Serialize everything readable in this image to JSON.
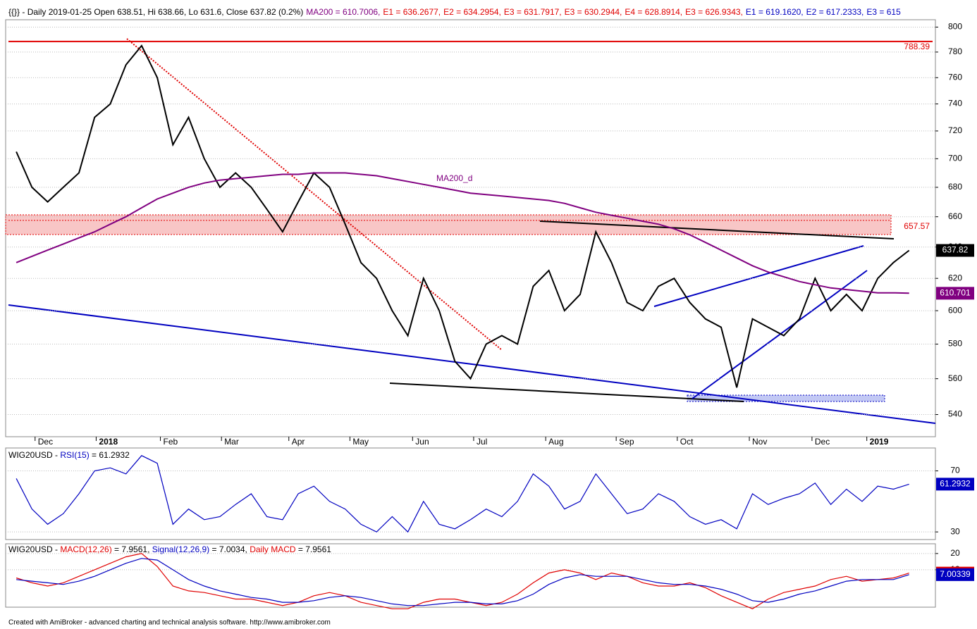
{
  "chart_data": [
    {
      "type": "line",
      "header": [
        {
          "text": "{{}} - Daily 2019-01-25 Open 638.51, Hi 638.66, Lo 631.6, Close 637.82 (0.2%)",
          "color": "#000000"
        },
        {
          "text": "MA200 = 610.7006,",
          "color": "#800080"
        },
        {
          "text": "E1 = 636.2677,",
          "color": "#e00000"
        },
        {
          "text": "E2 = 634.2954,",
          "color": "#e00000"
        },
        {
          "text": "E3 = 631.7917,",
          "color": "#e00000"
        },
        {
          "text": "E3 = 630.2944,",
          "color": "#e00000"
        },
        {
          "text": "E4 = 628.8914,",
          "color": "#e00000"
        },
        {
          "text": "E3 = 626.9343,",
          "color": "#e00000"
        },
        {
          "text": "E1 = 619.1620,",
          "color": "#0000c0"
        },
        {
          "text": "E2 = 617.2333,",
          "color": "#0000c0"
        },
        {
          "text": "E3 = 615",
          "color": "#0000c0"
        }
      ],
      "log_scale": true,
      "ylim": [
        528,
        806
      ],
      "yticks": [
        540,
        560,
        580,
        600,
        620,
        640,
        660,
        680,
        700,
        720,
        740,
        760,
        780,
        800
      ],
      "xlim": [
        -0.5,
        58.5
      ],
      "xticks": [
        {
          "value": 1.2,
          "label": "Dec"
        },
        {
          "value": 5.1,
          "label": "2018"
        },
        {
          "value": 9.2,
          "label": "Feb"
        },
        {
          "value": 13.1,
          "label": "Mar"
        },
        {
          "value": 17.4,
          "label": "Apr"
        },
        {
          "value": 21.3,
          "label": "May"
        },
        {
          "value": 25.3,
          "label": "Jun"
        },
        {
          "value": 29.2,
          "label": "Jul"
        },
        {
          "value": 33.8,
          "label": "Aug"
        },
        {
          "value": 38.3,
          "label": "Sep"
        },
        {
          "value": 42.2,
          "label": "Oct"
        },
        {
          "value": 46.8,
          "label": "Nov"
        },
        {
          "value": 50.8,
          "label": "Dec"
        },
        {
          "value": 54.3,
          "label": "2019"
        }
      ],
      "series": [
        {
          "name": "Close",
          "color": "#000000",
          "values": [
            705,
            680,
            670,
            680,
            690,
            730,
            740,
            770,
            785,
            760,
            710,
            730,
            700,
            680,
            690,
            680,
            665,
            650,
            670,
            690,
            680,
            655,
            630,
            620,
            600,
            585,
            620,
            600,
            570,
            560,
            580,
            585,
            580,
            615,
            625,
            600,
            610,
            650,
            630,
            605,
            600,
            615,
            620,
            605,
            595,
            590,
            555,
            595,
            590,
            585,
            595,
            620,
            600,
            610,
            600,
            620,
            630,
            637.82
          ]
        },
        {
          "name": "MA200_d",
          "color": "#800080",
          "values": [
            630,
            634,
            638,
            642,
            646,
            650,
            655,
            660,
            666,
            672,
            676,
            680,
            683,
            685,
            686,
            687,
            688,
            689,
            689,
            690,
            690,
            690,
            689,
            688,
            686,
            684,
            682,
            680,
            678,
            676,
            675,
            674,
            673,
            672,
            671,
            669,
            666,
            663,
            661,
            659,
            657,
            655,
            652,
            648,
            643,
            638,
            633,
            628,
            624,
            621,
            618,
            616,
            614,
            613,
            612,
            611,
            611,
            610.7
          ]
        }
      ],
      "levels": [
        {
          "value": 788.39,
          "color": "#e00000"
        },
        {
          "value": 657.57,
          "color": "#e00000"
        }
      ],
      "badges": [
        {
          "text": "637.82",
          "color": "#000000",
          "value": 637.82
        },
        {
          "text": "610.701",
          "color": "#800080",
          "value": 610.701
        }
      ]
    },
    {
      "type": "line",
      "header": [
        {
          "text": "WIG20USD - ",
          "color": "#000000"
        },
        {
          "text": "RSI(15)",
          "color": "#0000c0"
        },
        {
          "text": " = 61.2932",
          "color": "#000000"
        }
      ],
      "ylim": [
        25,
        85
      ],
      "yticks": [
        30,
        70
      ],
      "xlim": [
        -0.5,
        58.5
      ],
      "series": [
        {
          "name": "RSI(15)",
          "color": "#0000c0",
          "values": [
            65,
            45,
            35,
            42,
            55,
            70,
            72,
            68,
            80,
            75,
            35,
            45,
            38,
            40,
            48,
            55,
            40,
            38,
            55,
            60,
            50,
            45,
            35,
            30,
            40,
            30,
            50,
            35,
            32,
            38,
            45,
            40,
            50,
            68,
            60,
            45,
            50,
            68,
            55,
            42,
            45,
            55,
            50,
            40,
            35,
            38,
            32,
            55,
            48,
            52,
            55,
            62,
            48,
            58,
            50,
            60,
            58,
            61.2932
          ]
        }
      ],
      "badges": [
        {
          "text": "61.2932",
          "color": "#0000c0",
          "value": 61.2932
        }
      ]
    },
    {
      "type": "line",
      "header": [
        {
          "text": "WIG20USD - ",
          "color": "#000000"
        },
        {
          "text": "MACD(12,26)",
          "color": "#e00000"
        },
        {
          "text": " = 7.9561, ",
          "color": "#000000"
        },
        {
          "text": "Signal(12,26,9)",
          "color": "#0000c0"
        },
        {
          "text": " = 7.0034, ",
          "color": "#000000"
        },
        {
          "text": "Daily MACD",
          "color": "#e00000"
        },
        {
          "text": " = 7.9561",
          "color": "#000000"
        }
      ],
      "ylim": [
        -13,
        26
      ],
      "yticks": [
        20,
        10
      ],
      "xlim": [
        -0.5,
        58.5
      ],
      "series": [
        {
          "name": "MACD(12,26)",
          "color": "#e00000",
          "values": [
            5,
            2,
            0,
            2,
            6,
            10,
            14,
            18,
            20,
            12,
            0,
            -3,
            -4,
            -6,
            -8,
            -8,
            -10,
            -12,
            -10,
            -6,
            -4,
            -6,
            -10,
            -12,
            -14,
            -14,
            -10,
            -8,
            -8,
            -10,
            -12,
            -10,
            -5,
            2,
            8,
            10,
            8,
            4,
            8,
            6,
            2,
            0,
            0,
            2,
            -1,
            -6,
            -10,
            -14,
            -8,
            -4,
            -2,
            0,
            4,
            6,
            3,
            4,
            5,
            7.9561
          ]
        },
        {
          "name": "Signal(12,26,9)",
          "color": "#0000c0",
          "values": [
            4,
            3,
            2,
            1,
            3,
            6,
            10,
            14,
            17,
            16,
            10,
            4,
            0,
            -3,
            -5,
            -7,
            -8,
            -10,
            -10,
            -9,
            -7,
            -6,
            -7,
            -9,
            -11,
            -12,
            -12,
            -11,
            -10,
            -10,
            -11,
            -11,
            -9,
            -5,
            1,
            5,
            7,
            6,
            6,
            6,
            4,
            2,
            1,
            1,
            0,
            -2,
            -5,
            -9,
            -10,
            -8,
            -5,
            -3,
            0,
            3,
            4,
            4,
            4,
            7.0034
          ]
        }
      ],
      "badges": [
        {
          "text": "7.95614",
          "color": "#e00000",
          "value": 7.95614
        },
        {
          "text": "7.00339",
          "color": "#0000c0",
          "value": 7.00339
        }
      ]
    }
  ],
  "footer": "Created with AmiBroker - advanced charting and technical analysis software. http://www.amibroker.com"
}
